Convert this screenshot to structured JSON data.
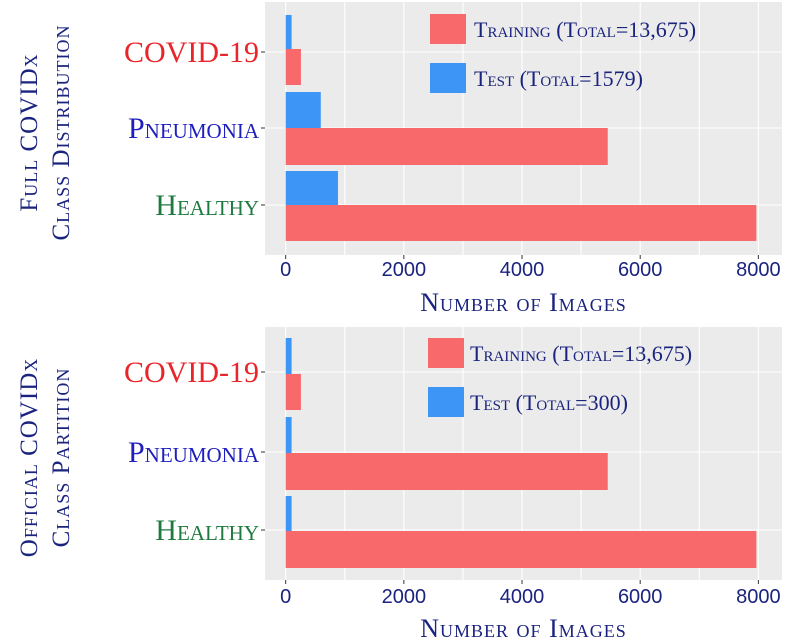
{
  "chart_data": [
    {
      "type": "bar",
      "orientation": "horizontal",
      "side_title_lines": [
        "Full COVIDx",
        "Class Distribution"
      ],
      "xlabel": "Number of Images",
      "xlim": [
        -350,
        8400
      ],
      "xticks": [
        0,
        2000,
        4000,
        6000,
        8000
      ],
      "grid": true,
      "legend_position": "top-right",
      "categories": [
        {
          "label": "COVID-19",
          "color": "#e8252b"
        },
        {
          "label": "Pneumonia",
          "color": "#1f1fbf"
        },
        {
          "label": "Healthy",
          "color": "#1f7a3f"
        }
      ],
      "series": [
        {
          "name": "Training (Total=13,675)",
          "color": "#f8696b",
          "values": [
            258,
            5451,
            7966
          ]
        },
        {
          "name": "Test (Total=1579)",
          "color": "#3d95f5",
          "values": [
            100,
            594,
            885
          ]
        }
      ]
    },
    {
      "type": "bar",
      "orientation": "horizontal",
      "side_title_lines": [
        "Official COVIDx",
        "Class Partition"
      ],
      "xlabel": "Number of Images",
      "xlim": [
        -350,
        8400
      ],
      "xticks": [
        0,
        2000,
        4000,
        6000,
        8000
      ],
      "grid": true,
      "legend_position": "top-right",
      "categories": [
        {
          "label": "COVID-19",
          "color": "#e8252b"
        },
        {
          "label": "Pneumonia",
          "color": "#1f1fbf"
        },
        {
          "label": "Healthy",
          "color": "#1f7a3f"
        }
      ],
      "series": [
        {
          "name": "Training (Total=13,675)",
          "color": "#f8696b",
          "values": [
            258,
            5451,
            7966
          ]
        },
        {
          "name": "Test (Total=300)",
          "color": "#3d95f5",
          "values": [
            100,
            100,
            100
          ]
        }
      ]
    }
  ]
}
